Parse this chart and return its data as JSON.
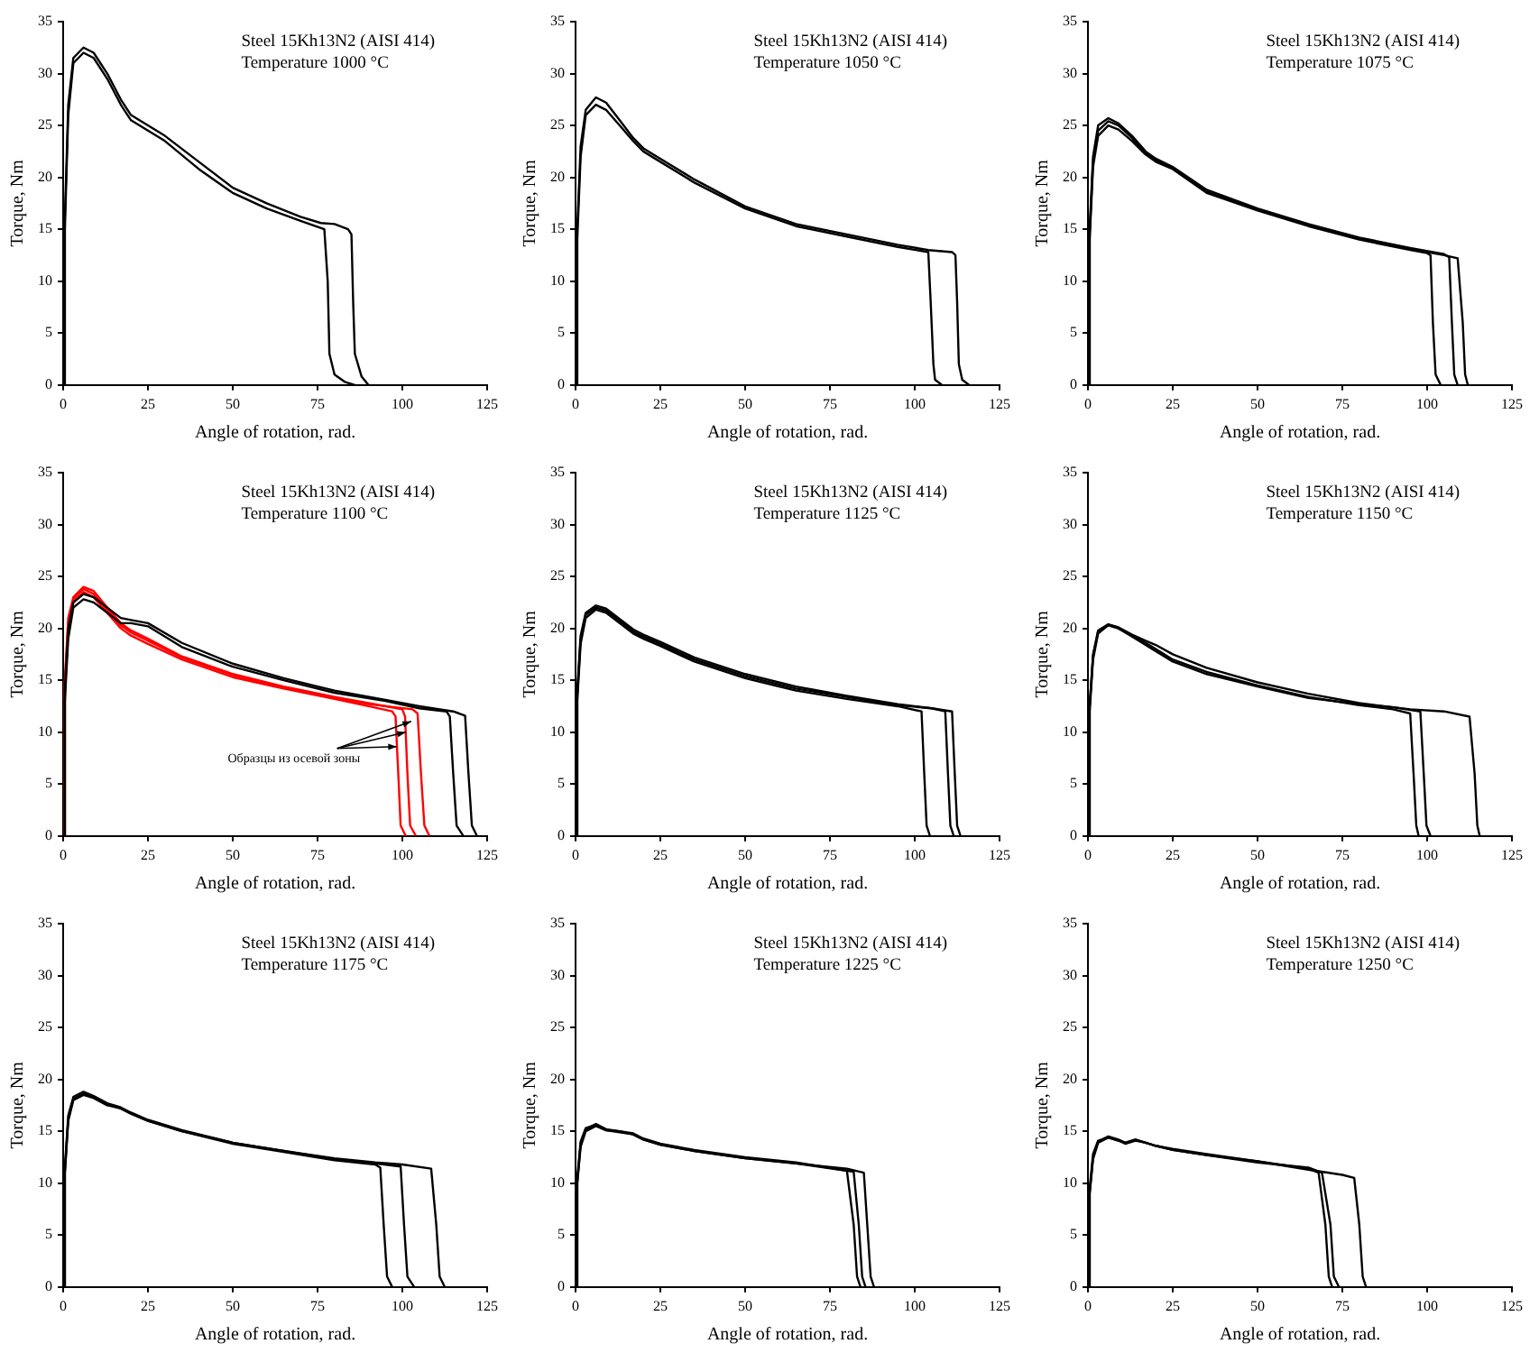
{
  "chart_data": [
    {
      "type": "line",
      "xlabel": "Angle of rotation, rad.",
      "ylabel": "Torque, Nm",
      "xlim": [
        0,
        125
      ],
      "xticks": [
        0,
        25,
        50,
        75,
        100,
        125
      ],
      "ylim": [
        0,
        35
      ],
      "yticks": [
        0,
        5,
        10,
        15,
        20,
        25,
        30,
        35
      ],
      "legend": false,
      "annotations": [
        "Steel 15Kh13N2 (AISI 414)",
        "Temperature 1000 °C"
      ],
      "series": [
        {
          "color": "#000000",
          "x": [
            0,
            0.5,
            1.5,
            3,
            6,
            9,
            13,
            17,
            20,
            25,
            30,
            40,
            50,
            60,
            70,
            77,
            78,
            78.5,
            80,
            83,
            86
          ],
          "values": [
            0,
            15,
            26,
            31,
            32,
            31.5,
            29.5,
            27,
            25.5,
            24.5,
            23.5,
            20.8,
            18.5,
            17,
            15.8,
            15,
            10,
            3,
            1,
            0.3,
            0
          ]
        },
        {
          "color": "#000000",
          "x": [
            0,
            0.5,
            1.5,
            3,
            6,
            9,
            13,
            17,
            20,
            25,
            30,
            40,
            50,
            60,
            70,
            76,
            80,
            84,
            85,
            85.5,
            86,
            88,
            90
          ],
          "values": [
            0,
            16,
            27,
            31.5,
            32.5,
            32,
            30,
            27.5,
            26,
            25,
            24,
            21.5,
            19,
            17.5,
            16.2,
            15.6,
            15.5,
            15,
            14.5,
            8,
            3,
            0.8,
            0
          ]
        }
      ]
    },
    {
      "type": "line",
      "xlabel": "Angle of rotation, rad.",
      "ylabel": "Torque, Nm",
      "xlim": [
        0,
        125
      ],
      "xticks": [
        0,
        25,
        50,
        75,
        100,
        125
      ],
      "ylim": [
        0,
        35
      ],
      "yticks": [
        0,
        5,
        10,
        15,
        20,
        25,
        30,
        35
      ],
      "legend": false,
      "annotations": [
        "Steel 15Kh13N2 (AISI 414)",
        "Temperature 1050 °C"
      ],
      "series": [
        {
          "color": "#000000",
          "x": [
            0,
            0.5,
            1.5,
            3,
            6,
            9,
            13,
            17,
            20,
            25,
            35,
            50,
            65,
            80,
            95,
            104,
            104.7,
            105.5,
            106,
            108
          ],
          "values": [
            0,
            14,
            22,
            26,
            27,
            26.5,
            25,
            23.5,
            22.5,
            21.5,
            19.5,
            17,
            15.3,
            14.3,
            13.3,
            12.8,
            8,
            2,
            0.5,
            0
          ]
        },
        {
          "color": "#000000",
          "x": [
            0,
            0.5,
            1.5,
            3,
            6,
            9,
            13,
            17,
            20,
            25,
            35,
            50,
            65,
            80,
            95,
            104,
            111,
            112,
            112.5,
            113,
            114,
            116
          ],
          "values": [
            0,
            15,
            23,
            26.5,
            27.7,
            27.2,
            25.5,
            23.8,
            22.8,
            21.8,
            19.8,
            17.2,
            15.5,
            14.5,
            13.5,
            13,
            12.8,
            12.5,
            8,
            2,
            0.5,
            0
          ]
        }
      ]
    },
    {
      "type": "line",
      "xlabel": "Angle of rotation, rad.",
      "ylabel": "Torque, Nm",
      "xlim": [
        0,
        125
      ],
      "xticks": [
        0,
        25,
        50,
        75,
        100,
        125
      ],
      "ylim": [
        0,
        35
      ],
      "yticks": [
        0,
        5,
        10,
        15,
        20,
        25,
        30,
        35
      ],
      "legend": false,
      "annotations": [
        "Steel 15Kh13N2 (AISI 414)",
        "Temperature 1075 °C"
      ],
      "series": [
        {
          "color": "#000000",
          "x": [
            0,
            0.5,
            1.5,
            3,
            6,
            9,
            13,
            17,
            20,
            25,
            35,
            50,
            65,
            80,
            95,
            100,
            101,
            101.7,
            102.5,
            104
          ],
          "values": [
            0,
            14,
            21,
            24,
            25,
            24.6,
            23.5,
            22.2,
            21.5,
            20.8,
            18.5,
            16.8,
            15.3,
            14,
            13,
            12.7,
            12.5,
            6,
            1,
            0
          ]
        },
        {
          "color": "#000000",
          "x": [
            0,
            0.5,
            1.5,
            3,
            6,
            9,
            13,
            17,
            20,
            25,
            35,
            50,
            65,
            80,
            95,
            105,
            106.5,
            107.3,
            108,
            109
          ],
          "values": [
            0,
            15,
            22,
            25,
            25.7,
            25.2,
            24,
            22.5,
            21.8,
            21,
            18.8,
            17,
            15.5,
            14.2,
            13.2,
            12.6,
            12.3,
            6,
            1,
            0
          ]
        },
        {
          "color": "#000000",
          "x": [
            0,
            0.5,
            1.5,
            3,
            6,
            9,
            13,
            17,
            20,
            25,
            35,
            50,
            65,
            80,
            95,
            105,
            109,
            110.5,
            111.2,
            112
          ],
          "values": [
            0,
            14.5,
            21.5,
            24.5,
            25.4,
            25,
            23.8,
            22.3,
            21.6,
            20.9,
            18.6,
            16.9,
            15.4,
            14.1,
            13.1,
            12.5,
            12.2,
            6,
            1,
            0
          ]
        }
      ]
    },
    {
      "type": "line",
      "xlabel": "Angle of rotation, rad.",
      "ylabel": "Torque, Nm",
      "xlim": [
        0,
        125
      ],
      "xticks": [
        0,
        25,
        50,
        75,
        100,
        125
      ],
      "ylim": [
        0,
        35
      ],
      "yticks": [
        0,
        5,
        10,
        15,
        20,
        25,
        30,
        35
      ],
      "legend": false,
      "annotations": [
        "Steel 15Kh13N2 (AISI 414)",
        "Temperature 1100 °C",
        {
          "text": "Образцы из осевой зоны",
          "x": 101,
          "y": 10
        }
      ],
      "series": [
        {
          "color": "#000000",
          "x": [
            0,
            0.5,
            1.5,
            3,
            6,
            9,
            13,
            17,
            20,
            25,
            35,
            50,
            65,
            80,
            95,
            105,
            113,
            114,
            115,
            116,
            118
          ],
          "values": [
            0,
            13,
            19,
            22,
            22.8,
            22.5,
            21.5,
            20.5,
            20.5,
            20.2,
            18.2,
            16.3,
            15,
            13.8,
            13,
            12.3,
            12,
            11.5,
            6,
            1,
            0
          ]
        },
        {
          "color": "#000000",
          "x": [
            0,
            0.5,
            1.5,
            3,
            6,
            9,
            13,
            17,
            20,
            25,
            35,
            50,
            65,
            80,
            95,
            105,
            115,
            118.5,
            119.5,
            120.5,
            122
          ],
          "values": [
            0,
            14,
            20,
            22.5,
            23.3,
            23,
            22,
            21,
            20.8,
            20.5,
            18.6,
            16.6,
            15.2,
            14,
            13.1,
            12.5,
            12,
            11.6,
            6,
            1,
            0
          ]
        },
        {
          "color": "#ff0000",
          "x": [
            0,
            0.5,
            1.5,
            3,
            6,
            9,
            13,
            17,
            20,
            25,
            35,
            50,
            65,
            80,
            90,
            97,
            98,
            98.8,
            99.5,
            101
          ],
          "values": [
            0,
            14,
            20,
            22.5,
            23.5,
            23,
            21.5,
            20,
            19.3,
            18.5,
            17,
            15.3,
            14.2,
            13.2,
            12.5,
            12,
            11.5,
            6,
            1,
            0
          ]
        },
        {
          "color": "#ff0000",
          "x": [
            0,
            0.5,
            1.5,
            3,
            6,
            9,
            13,
            17,
            20,
            25,
            35,
            50,
            65,
            80,
            90,
            100,
            100.8,
            101.5,
            102.3,
            104
          ],
          "values": [
            0,
            15,
            21,
            23,
            24,
            23.6,
            22,
            20.5,
            19.8,
            19,
            17.3,
            15.6,
            14.4,
            13.4,
            12.8,
            12.2,
            11.5,
            6,
            1,
            0
          ]
        },
        {
          "color": "#ff0000",
          "x": [
            0,
            0.5,
            1.5,
            3,
            6,
            9,
            13,
            17,
            20,
            25,
            35,
            50,
            65,
            80,
            90,
            103,
            104.5,
            105.5,
            106.5,
            108
          ],
          "values": [
            0,
            14.5,
            20.5,
            22.8,
            23.8,
            23.3,
            21.8,
            20.3,
            19.6,
            18.8,
            17.2,
            15.5,
            14.3,
            13.3,
            12.7,
            12.2,
            11.8,
            6,
            1,
            0
          ]
        }
      ]
    },
    {
      "type": "line",
      "xlabel": "Angle of rotation, rad.",
      "ylabel": "Torque, Nm",
      "xlim": [
        0,
        125
      ],
      "xticks": [
        0,
        25,
        50,
        75,
        100,
        125
      ],
      "ylim": [
        0,
        35
      ],
      "yticks": [
        0,
        5,
        10,
        15,
        20,
        25,
        30,
        35
      ],
      "legend": false,
      "annotations": [
        "Steel 15Kh13N2 (AISI 414)",
        "Temperature 1125 °C"
      ],
      "series": [
        {
          "color": "#000000",
          "x": [
            0,
            0.5,
            1.5,
            3,
            6,
            9,
            13,
            17,
            20,
            25,
            35,
            50,
            65,
            80,
            95,
            102,
            102.8,
            103.5,
            104.5
          ],
          "values": [
            0,
            13,
            18.5,
            21,
            21.8,
            21.5,
            20.5,
            19.5,
            19,
            18.3,
            16.8,
            15.2,
            14,
            13.2,
            12.5,
            12,
            6,
            1,
            0
          ]
        },
        {
          "color": "#000000",
          "x": [
            0,
            0.5,
            1.5,
            3,
            6,
            9,
            13,
            17,
            20,
            25,
            35,
            50,
            65,
            80,
            95,
            105,
            109,
            109.8,
            110.5,
            111.5
          ],
          "values": [
            0,
            13.5,
            19,
            21.3,
            22,
            21.7,
            20.7,
            19.7,
            19.2,
            18.5,
            17,
            15.4,
            14.2,
            13.4,
            12.6,
            12.3,
            12,
            6,
            1,
            0
          ]
        },
        {
          "color": "#000000",
          "x": [
            0,
            0.5,
            1.5,
            3,
            6,
            9,
            13,
            17,
            20,
            25,
            35,
            50,
            65,
            80,
            95,
            105,
            111,
            111.8,
            112.5,
            113.5
          ],
          "values": [
            0,
            14,
            19.3,
            21.5,
            22.2,
            21.9,
            20.9,
            19.9,
            19.4,
            18.7,
            17.2,
            15.6,
            14.4,
            13.5,
            12.7,
            12.3,
            12,
            6,
            1,
            0
          ]
        }
      ]
    },
    {
      "type": "line",
      "xlabel": "Angle of rotation, rad.",
      "ylabel": "Torque, Nm",
      "xlim": [
        0,
        125
      ],
      "xticks": [
        0,
        25,
        50,
        75,
        100,
        125
      ],
      "ylim": [
        0,
        35
      ],
      "yticks": [
        0,
        5,
        10,
        15,
        20,
        25,
        30,
        35
      ],
      "legend": false,
      "annotations": [
        "Steel 15Kh13N2 (AISI 414)",
        "Temperature 1150 °C"
      ],
      "series": [
        {
          "color": "#000000",
          "x": [
            0,
            0.5,
            1.5,
            3,
            6,
            9,
            13,
            17,
            20,
            25,
            35,
            50,
            65,
            80,
            90,
            95,
            96,
            96.8,
            97.5
          ],
          "values": [
            0,
            12,
            17,
            19.5,
            20.3,
            20,
            19.3,
            18.6,
            18,
            17,
            15.8,
            14.5,
            13.4,
            12.6,
            12.2,
            11.8,
            6,
            1,
            0
          ]
        },
        {
          "color": "#000000",
          "x": [
            0,
            0.5,
            1.5,
            3,
            6,
            9,
            13,
            17,
            20,
            25,
            35,
            50,
            65,
            80,
            90,
            98,
            99,
            99.8,
            101
          ],
          "values": [
            0,
            12.5,
            17.3,
            19.7,
            20.3,
            20,
            19.2,
            18.4,
            17.8,
            16.8,
            15.6,
            14.4,
            13.3,
            12.7,
            12.4,
            12,
            6,
            1,
            0
          ]
        },
        {
          "color": "#000000",
          "x": [
            0,
            0.5,
            1.5,
            3,
            6,
            9,
            13,
            17,
            20,
            25,
            35,
            50,
            65,
            80,
            95,
            105,
            112.5,
            114,
            114.8,
            115.5
          ],
          "values": [
            0,
            12.5,
            17.5,
            19.8,
            20.4,
            20.1,
            19.4,
            18.8,
            18.4,
            17.5,
            16.2,
            14.8,
            13.7,
            12.8,
            12.2,
            12,
            11.5,
            6,
            1,
            0
          ]
        }
      ]
    },
    {
      "type": "line",
      "xlabel": "Angle of rotation, rad.",
      "ylabel": "Torque, Nm",
      "xlim": [
        0,
        125
      ],
      "xticks": [
        0,
        25,
        50,
        75,
        100,
        125
      ],
      "ylim": [
        0,
        35
      ],
      "yticks": [
        0,
        5,
        10,
        15,
        20,
        25,
        30,
        35
      ],
      "legend": false,
      "annotations": [
        "Steel 15Kh13N2 (AISI 414)",
        "Temperature 1175 °C"
      ],
      "series": [
        {
          "color": "#000000",
          "x": [
            0,
            0.5,
            1.5,
            3,
            6,
            9,
            13,
            17,
            20,
            25,
            35,
            50,
            65,
            80,
            92,
            93.5,
            94.5,
            95.5,
            97
          ],
          "values": [
            0,
            11,
            16,
            18,
            18.5,
            18.2,
            17.5,
            17.2,
            16.7,
            16,
            15,
            13.8,
            13,
            12.2,
            11.8,
            11.5,
            6,
            1,
            0
          ]
        },
        {
          "color": "#000000",
          "x": [
            0,
            0.5,
            1.5,
            3,
            6,
            9,
            13,
            17,
            20,
            25,
            35,
            50,
            65,
            80,
            92,
            99.5,
            100.5,
            101.5,
            103.5
          ],
          "values": [
            0,
            11.5,
            16.5,
            18.3,
            18.8,
            18.4,
            17.7,
            17.3,
            16.8,
            16.1,
            15.1,
            13.9,
            13.1,
            12.3,
            11.9,
            11.6,
            6,
            1,
            0
          ]
        },
        {
          "color": "#000000",
          "x": [
            0,
            0.5,
            1.5,
            3,
            6,
            9,
            13,
            17,
            20,
            25,
            35,
            50,
            65,
            80,
            92,
            100,
            108.5,
            110,
            111,
            112.5
          ],
          "values": [
            0,
            11,
            16.2,
            18.1,
            18.6,
            18.3,
            17.6,
            17.2,
            16.7,
            16,
            15,
            13.9,
            13.1,
            12.4,
            12,
            11.8,
            11.4,
            6,
            1,
            0
          ]
        }
      ]
    },
    {
      "type": "line",
      "xlabel": "Angle of rotation, rad.",
      "ylabel": "Torque, Nm",
      "xlim": [
        0,
        125
      ],
      "xticks": [
        0,
        25,
        50,
        75,
        100,
        125
      ],
      "ylim": [
        0,
        35
      ],
      "yticks": [
        0,
        5,
        10,
        15,
        20,
        25,
        30,
        35
      ],
      "legend": false,
      "annotations": [
        "Steel 15Kh13N2 (AISI 414)",
        "Temperature 1225 °C"
      ],
      "series": [
        {
          "color": "#000000",
          "x": [
            0,
            0.5,
            1.5,
            3,
            6,
            9,
            13,
            17,
            20,
            25,
            35,
            50,
            65,
            80,
            82,
            83,
            84
          ],
          "values": [
            0,
            10,
            13.8,
            15.2,
            15.7,
            15.2,
            15,
            14.8,
            14.3,
            13.8,
            13.2,
            12.5,
            12,
            11.2,
            6,
            1,
            0
          ]
        },
        {
          "color": "#000000",
          "x": [
            0,
            0.5,
            1.5,
            3,
            6,
            9,
            13,
            17,
            20,
            25,
            35,
            50,
            65,
            82,
            83.5,
            84.5,
            85.5
          ],
          "values": [
            0,
            10.5,
            14,
            15.3,
            15.6,
            15.1,
            15,
            14.7,
            14.2,
            13.7,
            13.1,
            12.4,
            11.9,
            11.1,
            6,
            1,
            0
          ]
        },
        {
          "color": "#000000",
          "x": [
            0,
            0.5,
            1.5,
            3,
            6,
            9,
            13,
            17,
            20,
            25,
            35,
            50,
            65,
            80,
            85,
            86,
            87,
            88
          ],
          "values": [
            0,
            10,
            13.5,
            15,
            15.5,
            15.1,
            14.9,
            14.7,
            14.2,
            13.7,
            13.1,
            12.4,
            11.9,
            11.4,
            11,
            6,
            1,
            0
          ]
        }
      ]
    },
    {
      "type": "line",
      "xlabel": "Angle of rotation, rad.",
      "ylabel": "Torque, Nm",
      "xlim": [
        0,
        125
      ],
      "xticks": [
        0,
        25,
        50,
        75,
        100,
        125
      ],
      "ylim": [
        0,
        35
      ],
      "yticks": [
        0,
        5,
        10,
        15,
        20,
        25,
        30,
        35
      ],
      "legend": false,
      "annotations": [
        "Steel 15Kh13N2 (AISI 414)",
        "Temperature 1250 °C"
      ],
      "series": [
        {
          "color": "#000000",
          "x": [
            0,
            0.5,
            1.5,
            3,
            6,
            9,
            11,
            14,
            17,
            20,
            25,
            35,
            50,
            65,
            68,
            70,
            71,
            72
          ],
          "values": [
            0,
            9,
            12.5,
            14,
            14.5,
            14.2,
            13.9,
            14.2,
            13.9,
            13.6,
            13.3,
            12.8,
            12.1,
            11.4,
            11,
            6,
            1,
            0
          ]
        },
        {
          "color": "#000000",
          "x": [
            0,
            0.5,
            1.5,
            3,
            6,
            9,
            11,
            14,
            17,
            20,
            25,
            35,
            50,
            65,
            69,
            71.5,
            72.5,
            74
          ],
          "values": [
            0,
            9.5,
            12.8,
            14.1,
            14.4,
            14.1,
            13.8,
            14.1,
            13.9,
            13.6,
            13.2,
            12.7,
            12,
            11.5,
            11,
            6,
            1,
            0
          ]
        },
        {
          "color": "#000000",
          "x": [
            0,
            0.5,
            1.5,
            3,
            6,
            9,
            11,
            14,
            17,
            20,
            25,
            35,
            50,
            65,
            75,
            78.5,
            80,
            81,
            82
          ],
          "values": [
            0,
            9,
            12.3,
            13.9,
            14.4,
            14.1,
            13.9,
            14.2,
            13.9,
            13.6,
            13.2,
            12.7,
            12.1,
            11.3,
            10.8,
            10.5,
            6,
            1,
            0
          ]
        }
      ]
    }
  ]
}
